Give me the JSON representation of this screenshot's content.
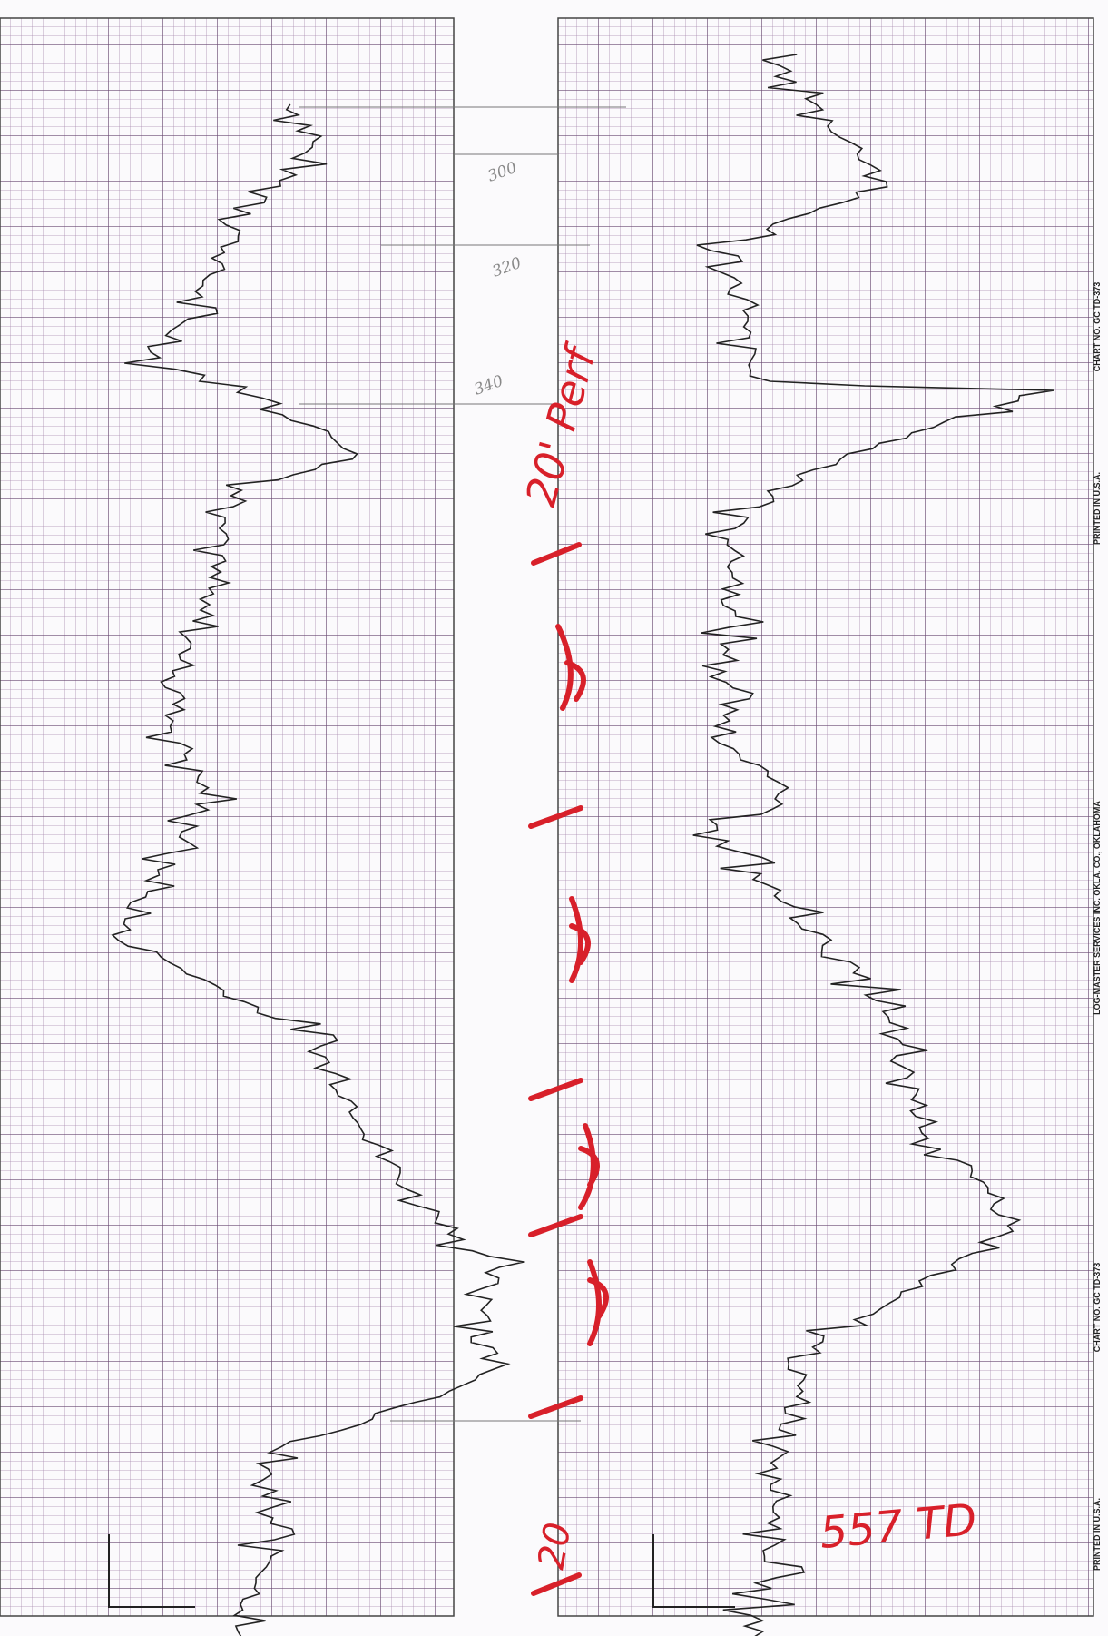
{
  "annotations": {
    "perf_note": "20' Perf",
    "td_note": "557 TD",
    "bottom_note": "20"
  },
  "depth_marks": [
    "300",
    "320",
    "340"
  ],
  "chart_margin": {
    "printed_top": "PRINTED IN U.S.A.",
    "chart_no_top": "CHART NO. GC TD-373",
    "company": "LOG-MASTER SERVICES INC. OKLA. CO., OKLAHOMA",
    "chart_no_bottom": "CHART NO. GC TD-373",
    "printed_bottom": "PRINTED IN U.S.A."
  }
}
